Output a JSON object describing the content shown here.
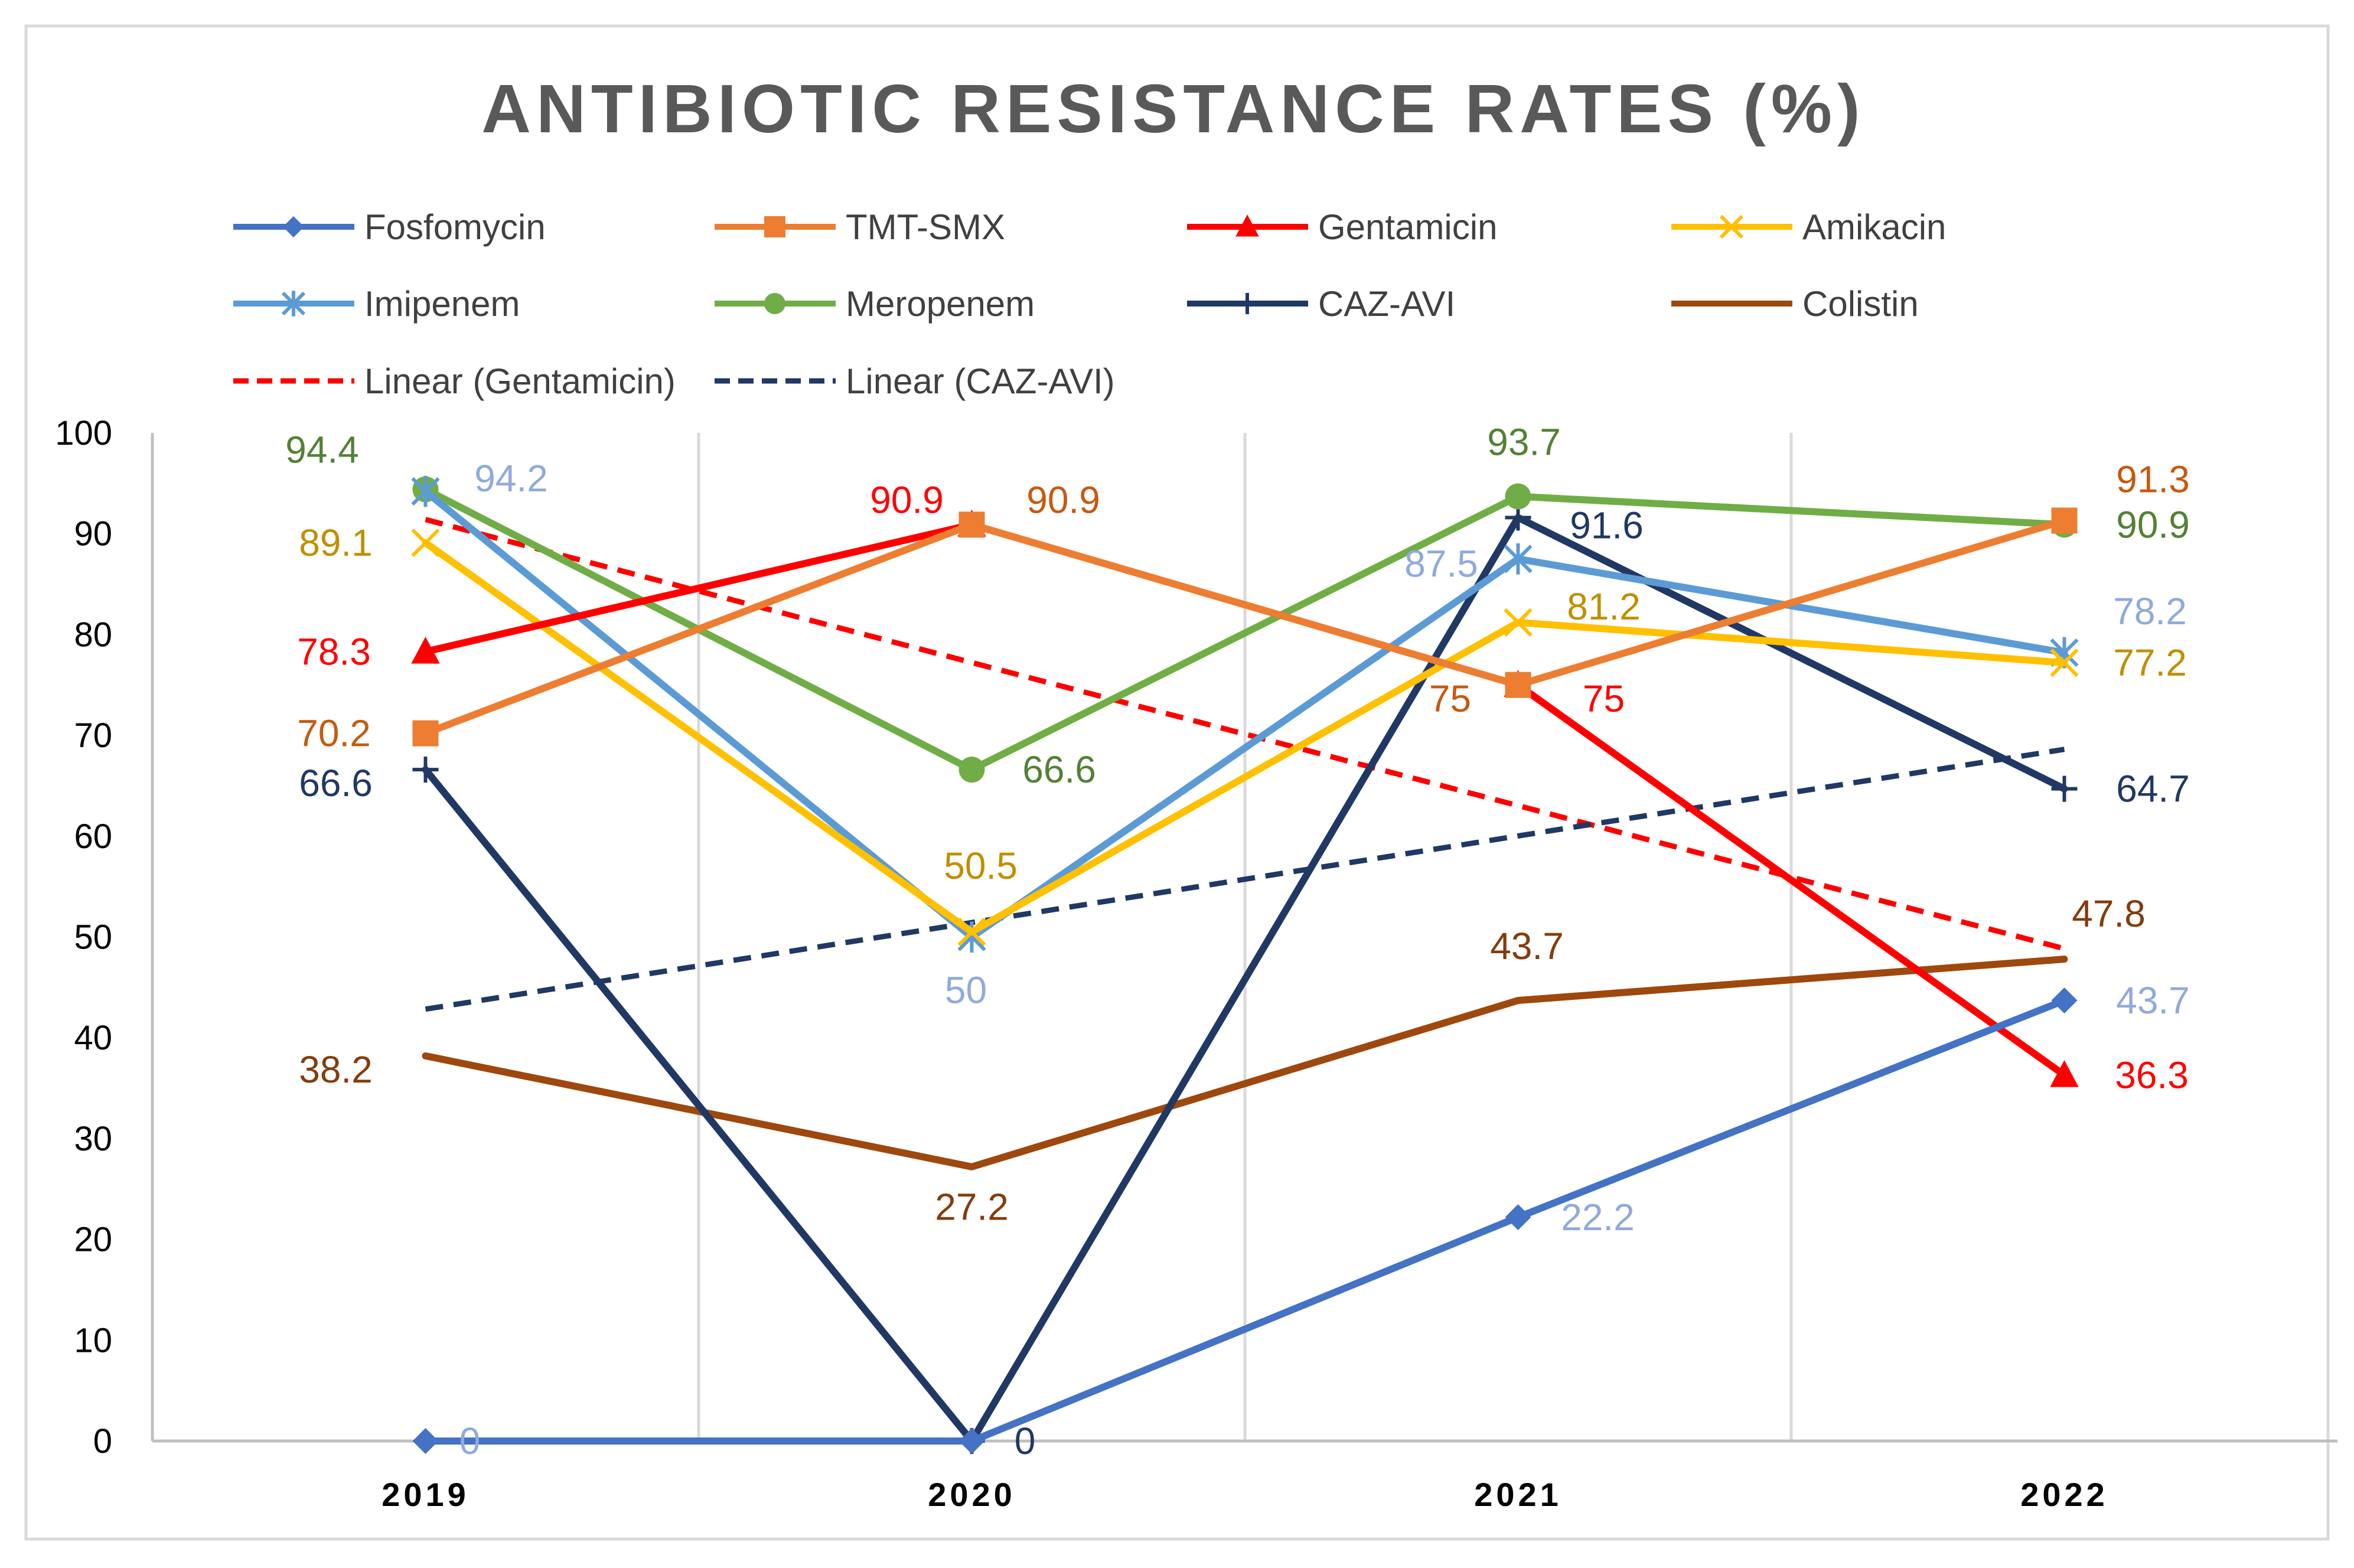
{
  "chart_data": {
    "type": "line",
    "title": "ANTIBIOTIC RESISTANCE RATES (%)",
    "xlabel": "",
    "ylabel": "",
    "categories": [
      "2019",
      "2020",
      "2021",
      "2022"
    ],
    "ylim": [
      0,
      100
    ],
    "yticks": [
      0,
      10,
      20,
      30,
      40,
      50,
      60,
      70,
      80,
      90,
      100
    ],
    "grid": "vertical",
    "legend_position": "top",
    "series": [
      {
        "name": "Fosfomycin",
        "color": "#4472C4",
        "marker": "diamond",
        "values": [
          0,
          0,
          22.2,
          43.7
        ],
        "labels": [
          "0",
          "",
          "22.2",
          "43.7"
        ],
        "label_color": "#8FAADC"
      },
      {
        "name": "TMT-SMX",
        "color": "#ED7D31",
        "marker": "square",
        "values": [
          70.2,
          90.9,
          75,
          91.3
        ],
        "labels": [
          "70.2",
          "90.9",
          "75",
          "91.3"
        ],
        "label_color": "#C55A11"
      },
      {
        "name": "Gentamicin",
        "color": "#FF0000",
        "marker": "triangle",
        "values": [
          78.3,
          90.9,
          75,
          36.3
        ],
        "labels": [
          "78.3",
          "90.9",
          "75",
          "36.3"
        ],
        "label_color": "#FF0000"
      },
      {
        "name": "Amikacin",
        "color": "#FFC000",
        "marker": "x",
        "values": [
          89.1,
          50.5,
          81.2,
          77.2
        ],
        "labels": [
          "89.1",
          "50.5",
          "81.2",
          "77.2"
        ],
        "label_color": "#BF9000"
      },
      {
        "name": "Imipenem",
        "color": "#5B9BD5",
        "marker": "star",
        "values": [
          94.2,
          50,
          87.5,
          78.2
        ],
        "labels": [
          "94.2",
          "50",
          "87.5",
          "78.2"
        ],
        "label_color": "#8FAADC"
      },
      {
        "name": "Meropenem",
        "color": "#70AD47",
        "marker": "circle",
        "values": [
          94.4,
          66.6,
          93.7,
          90.9
        ],
        "labels": [
          "94.4",
          "66.6",
          "93.7",
          "90.9"
        ],
        "label_color": "#538135"
      },
      {
        "name": "CAZ-AVI",
        "color": "#203864",
        "marker": "plus",
        "values": [
          66.6,
          0,
          91.6,
          64.7
        ],
        "labels": [
          "66.6",
          "0",
          "91.6",
          "64.7"
        ],
        "label_color": "#203864"
      },
      {
        "name": "Colistin",
        "color": "#9E480E",
        "marker": "none",
        "values": [
          38.2,
          27.2,
          43.7,
          47.8
        ],
        "labels": [
          "38.2",
          "27.2",
          "43.7",
          "47.8"
        ],
        "label_color": "#843C0C"
      }
    ],
    "trendlines": [
      {
        "name": "Linear (Gentamicin)",
        "of": "Gentamicin",
        "color": "#FF0000",
        "style": "dashed"
      },
      {
        "name": "Linear (CAZ-AVI)",
        "of": "CAZ-AVI",
        "color": "#203864",
        "style": "dashed"
      }
    ]
  }
}
